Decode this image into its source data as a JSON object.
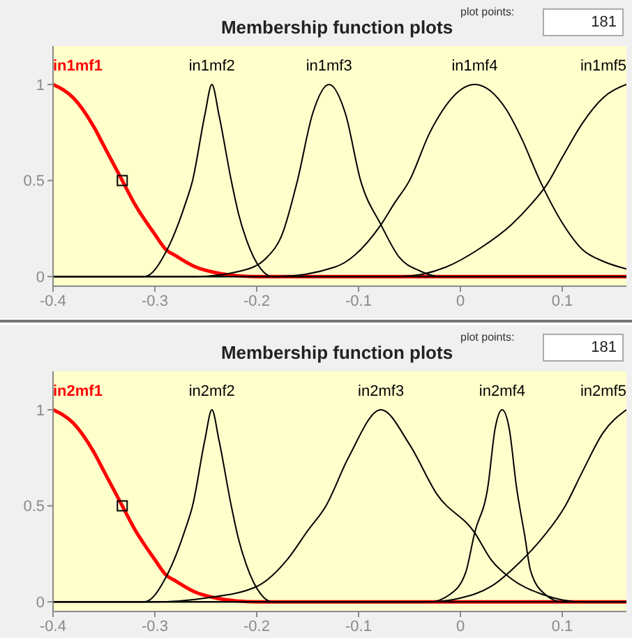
{
  "chart_data": [
    {
      "type": "line",
      "title": "Membership function plots",
      "annotations": [
        "plot points:",
        "181"
      ],
      "xlim": [
        -0.4,
        0.163
      ],
      "xticks": [
        -0.4,
        -0.3,
        -0.2,
        -0.1,
        0,
        0.1
      ],
      "ylim": [
        -0.05,
        1.2
      ],
      "yticks": [
        0,
        0.5,
        1
      ],
      "grid": false,
      "legend": false,
      "marker": "none",
      "series": [
        {
          "name": "in1mf1",
          "color": "#ff0000",
          "x": [
            -0.4,
            -0.38,
            -0.36,
            -0.35,
            -0.34,
            -0.332,
            -0.32,
            -0.3,
            -0.289,
            -0.28,
            -0.26,
            -0.24,
            -0.22,
            -0.2,
            0.163
          ],
          "values": [
            1,
            0.93,
            0.78,
            0.68,
            0.58,
            0.5,
            0.38,
            0.22,
            0.14,
            0.11,
            0.05,
            0.02,
            0.005,
            0,
            0
          ]
        },
        {
          "name": "in1mf2",
          "color": "#000000",
          "x": [
            -0.4,
            -0.31,
            -0.288,
            -0.27,
            -0.263,
            -0.251,
            -0.244,
            -0.237,
            -0.225,
            -0.218,
            -0.21,
            -0.196,
            -0.185,
            0.163
          ],
          "values": [
            0,
            0,
            0.14,
            0.38,
            0.5,
            0.84,
            1,
            0.84,
            0.5,
            0.33,
            0.19,
            0.04,
            0,
            0
          ]
        },
        {
          "name": "in1mf3",
          "color": "#000000",
          "x": [
            -0.4,
            -0.26,
            -0.215,
            -0.19,
            -0.175,
            -0.16,
            -0.145,
            -0.129,
            -0.113,
            -0.098,
            -0.078,
            -0.06,
            -0.04,
            -0.02,
            0.163
          ],
          "values": [
            0,
            0,
            0.03,
            0.1,
            0.22,
            0.5,
            0.85,
            1,
            0.85,
            0.5,
            0.27,
            0.1,
            0.03,
            0,
            0
          ]
        },
        {
          "name": "in1mf4",
          "color": "#000000",
          "x": [
            -0.4,
            -0.18,
            -0.123,
            -0.078,
            -0.065,
            -0.05,
            -0.03,
            0.014,
            0.045,
            0.06,
            0.078,
            0.1,
            0.12,
            0.14,
            0.163
          ],
          "values": [
            0,
            0,
            0.05,
            0.27,
            0.38,
            0.5,
            0.75,
            1,
            0.87,
            0.72,
            0.5,
            0.28,
            0.14,
            0.08,
            0.04
          ]
        },
        {
          "name": "in1mf5",
          "color": "#000000",
          "x": [
            -0.4,
            -0.06,
            -0.014,
            0.02,
            0.05,
            0.07,
            0.085,
            0.1,
            0.12,
            0.14,
            0.163
          ],
          "values": [
            0,
            0,
            0.05,
            0.15,
            0.27,
            0.38,
            0.48,
            0.62,
            0.8,
            0.93,
            1
          ]
        },
        {
          "type": "scatter",
          "marker": "square",
          "color": "#000000",
          "x": [
            -0.332
          ],
          "values": [
            0.5
          ]
        }
      ]
    },
    {
      "type": "line",
      "title": "Membership function plots",
      "annotations": [
        "plot points:",
        "181"
      ],
      "xlim": [
        -0.4,
        0.163
      ],
      "xticks": [
        -0.4,
        -0.3,
        -0.2,
        -0.1,
        0,
        0.1
      ],
      "ylim": [
        -0.05,
        1.2
      ],
      "yticks": [
        0,
        0.5,
        1
      ],
      "grid": false,
      "legend": false,
      "marker": "none",
      "series": [
        {
          "name": "in2mf1",
          "color": "#ff0000",
          "x": [
            -0.4,
            -0.38,
            -0.36,
            -0.35,
            -0.34,
            -0.332,
            -0.32,
            -0.3,
            -0.289,
            -0.28,
            -0.26,
            -0.24,
            -0.22,
            -0.2,
            0.163
          ],
          "values": [
            1,
            0.93,
            0.78,
            0.68,
            0.58,
            0.5,
            0.38,
            0.22,
            0.14,
            0.11,
            0.05,
            0.02,
            0.005,
            0,
            0
          ]
        },
        {
          "name": "in2mf2",
          "color": "#000000",
          "x": [
            -0.4,
            -0.31,
            -0.288,
            -0.27,
            -0.263,
            -0.251,
            -0.244,
            -0.237,
            -0.225,
            -0.218,
            -0.21,
            -0.196,
            -0.185,
            0.163
          ],
          "values": [
            0,
            0,
            0.14,
            0.38,
            0.5,
            0.84,
            1,
            0.84,
            0.5,
            0.33,
            0.19,
            0.04,
            0,
            0
          ]
        },
        {
          "name": "in2mf3",
          "color": "#000000",
          "x": [
            -0.4,
            -0.3,
            -0.25,
            -0.2,
            -0.17,
            -0.15,
            -0.132,
            -0.11,
            -0.078,
            -0.05,
            -0.023,
            0.014,
            0.03,
            0.05,
            0.08,
            0.1,
            0.12,
            0.163
          ],
          "values": [
            0,
            0,
            0.02,
            0.08,
            0.22,
            0.37,
            0.5,
            0.75,
            1,
            0.82,
            0.56,
            0.36,
            0.22,
            0.12,
            0.04,
            0.01,
            0,
            0
          ]
        },
        {
          "name": "in2mf4",
          "color": "#000000",
          "x": [
            -0.4,
            -0.03,
            -0.01,
            0.005,
            0.014,
            0.027,
            0.034,
            0.041,
            0.048,
            0.055,
            0.063,
            0.069,
            0.083,
            0.1,
            0.163
          ],
          "values": [
            0,
            0,
            0.04,
            0.15,
            0.36,
            0.6,
            0.9,
            1,
            0.9,
            0.6,
            0.35,
            0.16,
            0.04,
            0,
            0
          ]
        },
        {
          "name": "in2mf5",
          "color": "#000000",
          "x": [
            -0.4,
            -0.03,
            0,
            0.03,
            0.059,
            0.08,
            0.103,
            0.12,
            0.14,
            0.163
          ],
          "values": [
            0,
            0,
            0.02,
            0.08,
            0.21,
            0.33,
            0.5,
            0.68,
            0.88,
            1
          ]
        },
        {
          "type": "scatter",
          "marker": "square",
          "color": "#000000",
          "x": [
            -0.332
          ],
          "values": [
            0.5
          ]
        }
      ]
    }
  ]
}
